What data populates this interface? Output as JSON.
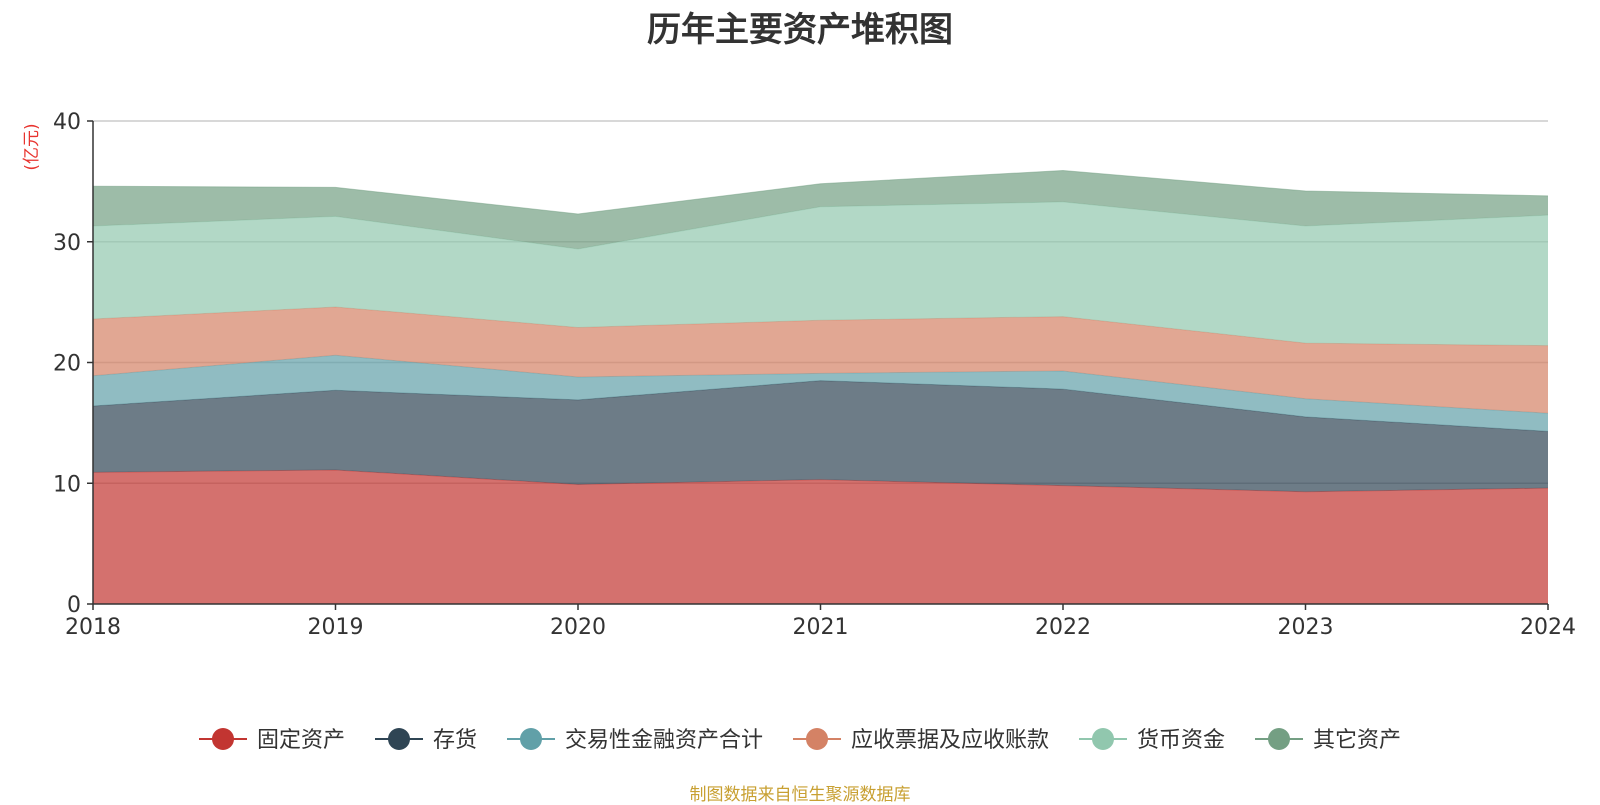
{
  "chart_data": {
    "type": "area",
    "stacked": true,
    "title": "历年主要资产堆积图",
    "ylabel": "(亿元)",
    "xlabel": "",
    "x": [
      "2018",
      "2019",
      "2020",
      "2021",
      "2022",
      "2023",
      "2024"
    ],
    "ylim": [
      0,
      40
    ],
    "yticks": [
      0,
      10,
      20,
      30,
      40
    ],
    "grid": true,
    "legend_position": "bottom",
    "series": [
      {
        "name": "固定资产",
        "color": "#c23531",
        "values": [
          10.9,
          11.1,
          9.9,
          10.3,
          9.8,
          9.3,
          9.6
        ]
      },
      {
        "name": "存货",
        "color": "#2f4554",
        "values": [
          5.5,
          6.6,
          7.0,
          8.2,
          8.0,
          6.2,
          4.7
        ]
      },
      {
        "name": "交易性金融资产合计",
        "color": "#61a0a8",
        "values": [
          2.5,
          2.9,
          1.9,
          0.6,
          1.5,
          1.5,
          1.5
        ]
      },
      {
        "name": "应收票据及应收账款",
        "color": "#d48265",
        "values": [
          4.7,
          4.0,
          4.1,
          4.4,
          4.5,
          4.6,
          5.6
        ]
      },
      {
        "name": "货币资金",
        "color": "#91c7ae",
        "values": [
          7.7,
          7.5,
          6.5,
          9.4,
          9.5,
          9.7,
          10.8
        ]
      },
      {
        "name": "其它资产",
        "color": "#749f83",
        "values": [
          3.3,
          2.4,
          2.9,
          1.9,
          2.6,
          2.9,
          1.6
        ]
      }
    ]
  },
  "footer": {
    "source": "制图数据来自恒生聚源数据库"
  }
}
